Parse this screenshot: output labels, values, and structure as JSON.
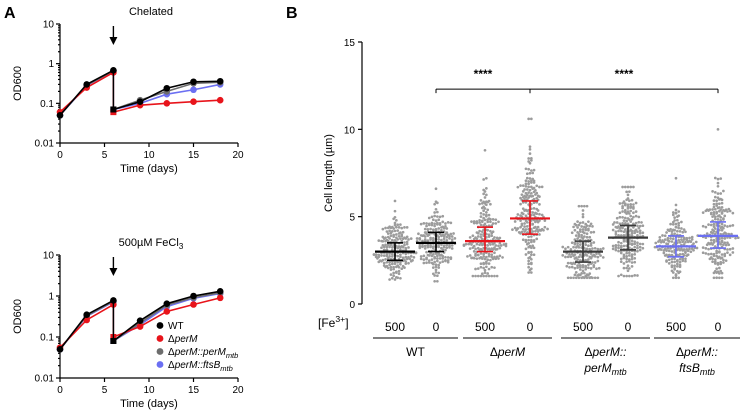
{
  "panels": {
    "a_label": "A",
    "b_label": "B"
  },
  "chart_data": [
    {
      "id": "A-top",
      "type": "line",
      "title": "Chelated",
      "xlabel": "Time (days)",
      "ylabel": "OD600",
      "yscale": "log",
      "xlim": [
        0,
        20
      ],
      "ylim": [
        0.01,
        10
      ],
      "xticks": [
        "0",
        "5",
        "10",
        "15",
        "20"
      ],
      "yticks": [
        "0.01",
        "0.1",
        "1",
        "10"
      ],
      "arrow_x": 6,
      "series": [
        {
          "name": "WT",
          "color": "#000000",
          "segments": [
            [
              [
                0,
                0.05
              ],
              [
                3,
                0.3
              ],
              [
                6,
                0.68
              ]
            ],
            [
              [
                6,
                0.07
              ],
              [
                9,
                0.11
              ],
              [
                12,
                0.24
              ],
              [
                15,
                0.35
              ],
              [
                18,
                0.36
              ]
            ]
          ]
        },
        {
          "name": "ΔperM",
          "color": "#e8141b",
          "segments": [
            [
              [
                0,
                0.06
              ],
              [
                3,
                0.25
              ],
              [
                6,
                0.6
              ]
            ],
            [
              [
                6,
                0.06
              ],
              [
                9,
                0.09
              ],
              [
                12,
                0.1
              ],
              [
                15,
                0.11
              ],
              [
                18,
                0.12
              ]
            ]
          ]
        },
        {
          "name": "ΔperM::perMmtb",
          "color": "#6d6d6d",
          "segments": [
            [
              [
                0,
                0.05
              ],
              [
                3,
                0.29
              ],
              [
                6,
                0.65
              ]
            ],
            [
              [
                6,
                0.07
              ],
              [
                9,
                0.12
              ],
              [
                12,
                0.2
              ],
              [
                15,
                0.32
              ],
              [
                18,
                0.34
              ]
            ]
          ]
        },
        {
          "name": "ΔperM::ftsBmtb",
          "color": "#6b6ff2",
          "segments": [
            [
              [
                0,
                0.05
              ],
              [
                3,
                0.28
              ],
              [
                6,
                0.66
              ]
            ],
            [
              [
                6,
                0.07
              ],
              [
                9,
                0.1
              ],
              [
                12,
                0.17
              ],
              [
                15,
                0.22
              ],
              [
                18,
                0.3
              ]
            ]
          ]
        }
      ]
    },
    {
      "id": "A-bottom",
      "type": "line",
      "title_parts": [
        "500µM FeCl",
        "3"
      ],
      "xlabel": "Time (days)",
      "ylabel": "OD600",
      "yscale": "log",
      "xlim": [
        0,
        20
      ],
      "ylim": [
        0.01,
        10
      ],
      "xticks": [
        "0",
        "5",
        "10",
        "15",
        "20"
      ],
      "yticks": [
        "0.01",
        "0.1",
        "1",
        "10"
      ],
      "arrow_x": 6,
      "series": [
        {
          "name": "WT",
          "color": "#000000",
          "segments": [
            [
              [
                0,
                0.05
              ],
              [
                3,
                0.35
              ],
              [
                6,
                0.78
              ]
            ],
            [
              [
                6,
                0.08
              ],
              [
                9,
                0.25
              ],
              [
                12,
                0.65
              ],
              [
                15,
                1.0
              ],
              [
                18,
                1.3
              ]
            ]
          ]
        },
        {
          "name": "ΔperM",
          "color": "#e8141b",
          "segments": [
            [
              [
                0,
                0.055
              ],
              [
                3,
                0.26
              ],
              [
                6,
                0.62
              ]
            ],
            [
              [
                6,
                0.1
              ],
              [
                9,
                0.18
              ],
              [
                12,
                0.42
              ],
              [
                15,
                0.62
              ],
              [
                18,
                0.9
              ]
            ]
          ]
        },
        {
          "name": "ΔperM::perMmtb",
          "color": "#6d6d6d",
          "segments": [
            [
              [
                0,
                0.05
              ],
              [
                3,
                0.33
              ],
              [
                6,
                0.75
              ]
            ],
            [
              [
                6,
                0.08
              ],
              [
                9,
                0.22
              ],
              [
                12,
                0.6
              ],
              [
                15,
                0.92
              ],
              [
                18,
                1.2
              ]
            ]
          ]
        },
        {
          "name": "ΔperM::ftsBmtb",
          "color": "#6b6ff2",
          "segments": [
            [
              [
                0,
                0.05
              ],
              [
                3,
                0.32
              ],
              [
                6,
                0.72
              ]
            ],
            [
              [
                6,
                0.08
              ],
              [
                9,
                0.2
              ],
              [
                12,
                0.55
              ],
              [
                15,
                0.88
              ],
              [
                18,
                1.15
              ]
            ]
          ]
        }
      ],
      "legend": [
        {
          "color": "#000000",
          "parts": [
            {
              "t": "WT"
            }
          ]
        },
        {
          "color": "#e8141b",
          "parts": [
            {
              "t": "Δ"
            },
            {
              "t": "perM",
              "i": true
            }
          ]
        },
        {
          "color": "#6d6d6d",
          "parts": [
            {
              "t": "Δ"
            },
            {
              "t": "perM::perM",
              "i": true
            },
            {
              "t": "mtb",
              "i": true,
              "sub": true
            }
          ]
        },
        {
          "color": "#6b6ff2",
          "parts": [
            {
              "t": "Δ"
            },
            {
              "t": "perM::ftsB",
              "i": true
            },
            {
              "t": "mtb",
              "i": true,
              "sub": true
            }
          ]
        }
      ]
    },
    {
      "id": "B",
      "type": "scatter",
      "ylabel_parts": [
        "Cell length (",
        "µ",
        "m)"
      ],
      "ylim": [
        0,
        15
      ],
      "yticks": [
        "0",
        "5",
        "10",
        "15"
      ],
      "fe_label_parts": [
        "[Fe",
        "3+",
        "]"
      ],
      "columns": [
        {
          "group": "WT",
          "dose": "500",
          "median": 3.0,
          "q1": 2.5,
          "q3": 3.5,
          "min": 1.4,
          "max": 5.9,
          "color": "#000000",
          "n": 190
        },
        {
          "group": "WT",
          "dose": "0",
          "median": 3.5,
          "q1": 3.0,
          "q3": 4.1,
          "min": 1.3,
          "max": 6.6,
          "color": "#000000",
          "n": 200
        },
        {
          "group": "ΔperM",
          "dose": "500",
          "median": 3.6,
          "q1": 3.0,
          "q3": 4.4,
          "min": 1.6,
          "max": 8.8,
          "color": "#e8141b",
          "n": 210
        },
        {
          "group": "ΔperM",
          "dose": "0",
          "median": 4.9,
          "q1": 4.0,
          "q3": 5.9,
          "min": 1.8,
          "max": 10.6,
          "color": "#e8141b",
          "n": 210
        },
        {
          "group": "ΔperM::perMmtb",
          "dose": "500",
          "median": 3.0,
          "q1": 2.4,
          "q3": 3.6,
          "min": 1.5,
          "max": 5.6,
          "color": "#3a3a3a",
          "n": 190
        },
        {
          "group": "ΔperM::perMmtb",
          "dose": "0",
          "median": 3.8,
          "q1": 3.1,
          "q3": 4.5,
          "min": 1.6,
          "max": 6.7,
          "color": "#3a3a3a",
          "n": 200
        },
        {
          "group": "ΔperM::ftsBmtb",
          "dose": "500",
          "median": 3.3,
          "q1": 2.7,
          "q3": 3.9,
          "min": 1.5,
          "max": 7.2,
          "color": "#6b6ff2",
          "n": 180
        },
        {
          "group": "ΔperM::ftsBmtb",
          "dose": "0",
          "median": 3.9,
          "q1": 3.2,
          "q3": 4.7,
          "min": 1.5,
          "max": 10.0,
          "color": "#6b6ff2",
          "n": 200
        }
      ],
      "groups": [
        {
          "parts": [
            {
              "t": "WT"
            }
          ],
          "parts2": []
        },
        {
          "parts": [
            {
              "t": "Δ"
            },
            {
              "t": "perM",
              "i": true
            }
          ],
          "parts2": []
        },
        {
          "parts": [
            {
              "t": "Δ"
            },
            {
              "t": "perM::",
              "i": true
            }
          ],
          "parts2": [
            {
              "t": "perM",
              "i": true
            },
            {
              "t": "mtb",
              "i": true,
              "sub": true
            }
          ]
        },
        {
          "parts": [
            {
              "t": "Δ"
            },
            {
              "t": "perM::",
              "i": true
            }
          ],
          "parts2": [
            {
              "t": "ftsB",
              "i": true
            },
            {
              "t": "mtb",
              "i": true,
              "sub": true
            }
          ]
        }
      ],
      "significance": [
        {
          "from": 1,
          "to": 3,
          "label": "****",
          "y": 12.3
        },
        {
          "from": 3,
          "to": 7,
          "label": "****",
          "y": 12.3
        }
      ]
    }
  ]
}
